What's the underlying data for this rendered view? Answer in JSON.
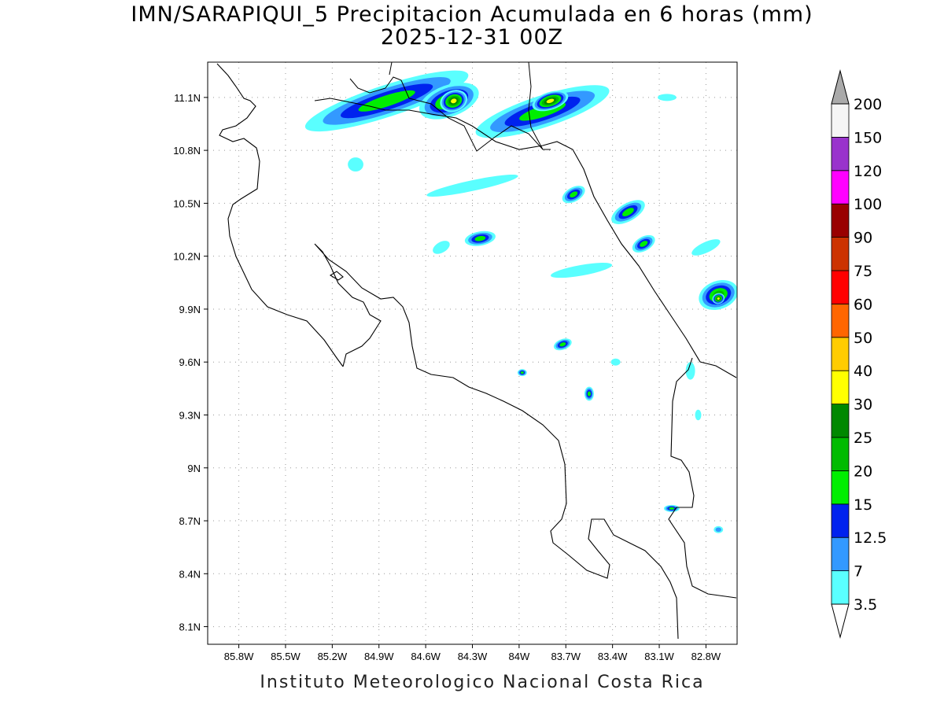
{
  "title_line1": "IMN/SARAPIQUI_5 Precipitacion Acumulada en 6 horas (mm)",
  "title_line2": "2025-12-31 00Z",
  "footer": "Instituto Meteorologico Nacional Costa Rica",
  "map": {
    "lon_range": [
      -86.0,
      -82.6
    ],
    "lat_range": [
      8.0,
      11.3
    ],
    "lat_ticks": [
      {
        "value": 11.1,
        "label": "11.1N"
      },
      {
        "value": 10.8,
        "label": "10.8N"
      },
      {
        "value": 10.5,
        "label": "10.5N"
      },
      {
        "value": 10.2,
        "label": "10.2N"
      },
      {
        "value": 9.9,
        "label": "9.9N"
      },
      {
        "value": 9.6,
        "label": "9.6N"
      },
      {
        "value": 9.3,
        "label": "9.3N"
      },
      {
        "value": 9.0,
        "label": "9N"
      },
      {
        "value": 8.7,
        "label": "8.7N"
      },
      {
        "value": 8.4,
        "label": "8.4N"
      },
      {
        "value": 8.1,
        "label": "8.1N"
      }
    ],
    "lon_ticks": [
      {
        "value": -85.8,
        "label": "85.8W"
      },
      {
        "value": -85.5,
        "label": "85.5W"
      },
      {
        "value": -85.2,
        "label": "85.2W"
      },
      {
        "value": -84.9,
        "label": "84.9W"
      },
      {
        "value": -84.6,
        "label": "84.6W"
      },
      {
        "value": -84.3,
        "label": "84.3W"
      },
      {
        "value": -84.0,
        "label": "84W"
      },
      {
        "value": -83.7,
        "label": "83.7W"
      },
      {
        "value": -83.4,
        "label": "83.4W"
      },
      {
        "value": -83.1,
        "label": "83.1W"
      },
      {
        "value": -82.8,
        "label": "82.8W"
      }
    ],
    "grid": true
  },
  "colorbar": {
    "levels": [
      "3.5",
      "7",
      "12.5",
      "15",
      "20",
      "25",
      "30",
      "40",
      "50",
      "60",
      "75",
      "90",
      "100",
      "120",
      "150",
      "200"
    ],
    "colors": [
      "#5affff",
      "#3399ff",
      "#0022ee",
      "#00ee00",
      "#00bb00",
      "#008800",
      "#ffff00",
      "#ffcc00",
      "#ff6600",
      "#ff0000",
      "#cc3300",
      "#990000",
      "#ff00ff",
      "#9933cc",
      "#f5f5f5"
    ],
    "top_arrow_color": "#aaaaaa",
    "bottom_arrow_color": "#ffffff"
  },
  "precip_cells": [
    {
      "lon": -84.85,
      "lat": 11.08,
      "rlon": 0.55,
      "rlat": 0.09,
      "rot": -18,
      "cat": 3
    },
    {
      "lon": -84.45,
      "lat": 11.08,
      "rlon": 0.2,
      "rlat": 0.09,
      "rot": -20,
      "cat": 4
    },
    {
      "lon": -84.42,
      "lat": 11.08,
      "rlon": 0.09,
      "rlat": 0.06,
      "rot": -20,
      "cat": 6
    },
    {
      "lon": -83.85,
      "lat": 11.02,
      "rlon": 0.45,
      "rlat": 0.09,
      "rot": -18,
      "cat": 3
    },
    {
      "lon": -83.8,
      "lat": 11.08,
      "rlon": 0.12,
      "rlat": 0.05,
      "rot": -18,
      "cat": 6
    },
    {
      "lon": -83.3,
      "lat": 10.45,
      "rlon": 0.12,
      "rlat": 0.05,
      "rot": -30,
      "cat": 3
    },
    {
      "lon": -83.65,
      "lat": 10.55,
      "rlon": 0.08,
      "rlat": 0.04,
      "rot": -30,
      "cat": 3
    },
    {
      "lon": -84.25,
      "lat": 10.3,
      "rlon": 0.1,
      "rlat": 0.04,
      "rot": -10,
      "cat": 3
    },
    {
      "lon": -83.2,
      "lat": 10.27,
      "rlon": 0.08,
      "rlat": 0.04,
      "rot": -30,
      "cat": 3
    },
    {
      "lon": -82.72,
      "lat": 9.98,
      "rlon": 0.13,
      "rlat": 0.08,
      "rot": -20,
      "cat": 4
    },
    {
      "lon": -82.72,
      "lat": 9.96,
      "rlon": 0.04,
      "rlat": 0.03,
      "rot": -20,
      "cat": 6
    },
    {
      "lon": -83.72,
      "lat": 9.7,
      "rlon": 0.06,
      "rlat": 0.03,
      "rot": -20,
      "cat": 3
    },
    {
      "lon": -83.55,
      "lat": 9.42,
      "rlon": 0.03,
      "rlat": 0.04,
      "rot": 0,
      "cat": 3
    },
    {
      "lon": -83.02,
      "lat": 8.77,
      "rlon": 0.05,
      "rlat": 0.02,
      "rot": 0,
      "cat": 3
    },
    {
      "lon": -83.98,
      "lat": 9.54,
      "rlon": 0.03,
      "rlat": 0.02,
      "rot": 0,
      "cat": 3
    }
  ],
  "light_cells": [
    {
      "lon": -84.3,
      "lat": 10.6,
      "rlon": 0.3,
      "rlat": 0.03,
      "rot": -12,
      "cat": 0
    },
    {
      "lon": -83.6,
      "lat": 10.12,
      "rlon": 0.2,
      "rlat": 0.03,
      "rot": -10,
      "cat": 0
    },
    {
      "lon": -84.5,
      "lat": 10.25,
      "rlon": 0.06,
      "rlat": 0.03,
      "rot": -30,
      "cat": 0
    },
    {
      "lon": -85.05,
      "lat": 10.72,
      "rlon": 0.05,
      "rlat": 0.04,
      "rot": 0,
      "cat": 0
    },
    {
      "lon": -83.38,
      "lat": 9.6,
      "rlon": 0.03,
      "rlat": 0.02,
      "rot": 0,
      "cat": 0
    },
    {
      "lon": -82.85,
      "lat": 9.3,
      "rlon": 0.02,
      "rlat": 0.03,
      "rot": 0,
      "cat": 0
    },
    {
      "lon": -82.72,
      "lat": 8.65,
      "rlon": 0.03,
      "rlat": 0.02,
      "rot": 0,
      "cat": 1
    },
    {
      "lon": -83.05,
      "lat": 11.1,
      "rlon": 0.06,
      "rlat": 0.02,
      "rot": 0,
      "cat": 0
    },
    {
      "lon": -82.8,
      "lat": 10.25,
      "rlon": 0.1,
      "rlat": 0.03,
      "rot": -25,
      "cat": 0
    },
    {
      "lon": -82.9,
      "lat": 9.55,
      "rlon": 0.03,
      "rlat": 0.05,
      "rot": 0,
      "cat": 0
    }
  ]
}
